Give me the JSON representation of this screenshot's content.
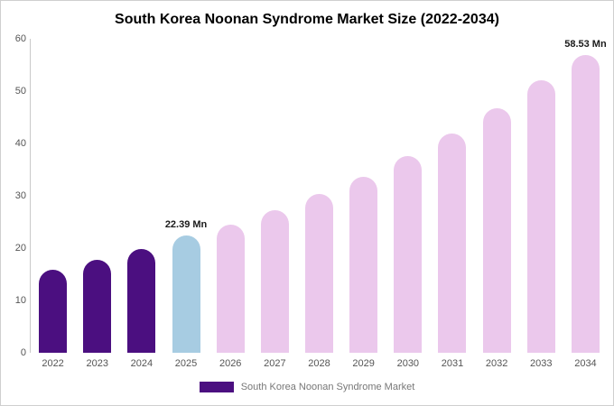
{
  "chart_data": {
    "type": "bar",
    "title": "South Korea Noonan Syndrome Market Size (2022-2034)",
    "categories": [
      "2022",
      "2023",
      "2024",
      "2025",
      "2026",
      "2027",
      "2028",
      "2029",
      "2030",
      "2031",
      "2032",
      "2033",
      "2034"
    ],
    "values": [
      15.8,
      17.7,
      19.8,
      22.39,
      24.5,
      27.2,
      30.3,
      33.7,
      37.6,
      41.9,
      46.7,
      52.0,
      58.53
    ],
    "unit": "Mn",
    "ylim": [
      0,
      60
    ],
    "yticks": [
      0,
      10,
      20,
      30,
      40,
      50,
      60
    ],
    "grid": false,
    "bar_colors": [
      "#4B0F80",
      "#4B0F80",
      "#4B0F80",
      "#A7CCE2",
      "#EBC8EC",
      "#EBC8EC",
      "#EBC8EC",
      "#EBC8EC",
      "#EBC8EC",
      "#EBC8EC",
      "#EBC8EC",
      "#EBC8EC",
      "#EBC8EC"
    ],
    "annotations": [
      {
        "index": 3,
        "text": "22.39 Mn"
      },
      {
        "index": 12,
        "text": "58.53 Mn"
      }
    ],
    "legend_position": "bottom",
    "legend": {
      "label": "South Korea Noonan Syndrome Market",
      "color": "#4B0F80"
    }
  }
}
